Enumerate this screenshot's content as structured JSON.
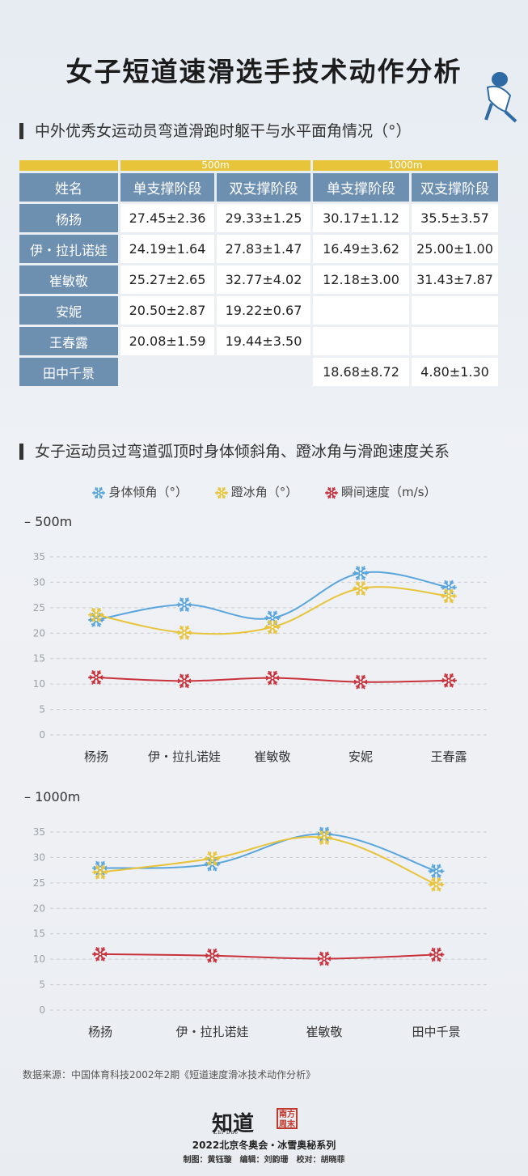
{
  "title": "女子短道速滑选手技术动作分析",
  "section1_title": "中外优秀女运动员弯道滑跑时躯干与水平面角情况（°）",
  "table": {
    "group_headers": [
      "500m",
      "1000m"
    ],
    "columns": [
      "姓名",
      "单支撑阶段",
      "双支撑阶段",
      "单支撑阶段",
      "双支撑阶段"
    ],
    "rows": [
      [
        "杨扬",
        "27.45±2.36",
        "29.33±1.25",
        "30.17±1.12",
        "35.5±3.57"
      ],
      [
        "伊・拉扎诺娃",
        "24.19±1.64",
        "27.83±1.47",
        "16.49±3.62",
        "25.00±1.00"
      ],
      [
        "崔敏敬",
        "25.27±2.65",
        "32.77±4.02",
        "12.18±3.00",
        "31.43±7.87"
      ],
      [
        "安妮",
        "20.50±2.87",
        "19.22±0.67",
        "",
        ""
      ],
      [
        "王春露",
        "20.08±1.59",
        "19.44±3.50",
        "",
        ""
      ],
      [
        "田中千景",
        "",
        "",
        "18.68±8.72",
        "4.80±1.30"
      ]
    ]
  },
  "section2_title": "女子运动员过弯道弧顶时身体倾斜角、蹬冰角与滑跑速度关系",
  "legend": [
    {
      "label": "身体倾角（°）",
      "color": "#5aa5dc"
    },
    {
      "label": "蹬冰角（°）",
      "color": "#e8c43a"
    },
    {
      "label": "瞬间速度（m/s）",
      "color": "#c8323c"
    }
  ],
  "chart_data": [
    {
      "type": "line",
      "title": "– 500m",
      "categories": [
        "杨扬",
        "伊・拉扎诺娃",
        "崔敏敬",
        "安妮",
        "王春露"
      ],
      "ylim": [
        0,
        35
      ],
      "yticks": [
        "0",
        "5",
        "10",
        "15",
        "20",
        "25",
        "30",
        "35"
      ],
      "grid": true,
      "series": [
        {
          "name": "身体倾角（°）",
          "color": "#5aa5dc",
          "values": [
            22.6,
            25.6,
            23.0,
            31.8,
            29.0
          ]
        },
        {
          "name": "蹬冰角（°）",
          "color": "#e8c43a",
          "values": [
            23.6,
            20.1,
            21.2,
            28.8,
            27.3
          ]
        },
        {
          "name": "瞬间速度（m/s）",
          "color": "#c8323c",
          "values": [
            11.3,
            10.6,
            11.2,
            10.4,
            10.7
          ]
        }
      ]
    },
    {
      "type": "line",
      "title": "– 1000m",
      "categories": [
        "杨扬",
        "伊・拉扎诺娃",
        "崔敏敬",
        "田中千景"
      ],
      "ylim": [
        0,
        35
      ],
      "yticks": [
        "0",
        "5",
        "10",
        "15",
        "20",
        "25",
        "30",
        "35"
      ],
      "grid": true,
      "series": [
        {
          "name": "身体倾角（°）",
          "color": "#5aa5dc",
          "values": [
            27.9,
            28.7,
            34.6,
            27.3
          ]
        },
        {
          "name": "蹬冰角（°）",
          "color": "#e8c43a",
          "values": [
            27.1,
            29.8,
            33.9,
            24.7
          ]
        },
        {
          "name": "瞬间速度（m/s）",
          "color": "#c8323c",
          "values": [
            11.0,
            10.7,
            10.1,
            10.9
          ]
        }
      ]
    }
  ],
  "footer": {
    "source": "数据来源：中国体育科技2002年2期《短道速度滑冰技术动作分析》",
    "logo1": "知道",
    "logo1_sub": "Zhi Dao",
    "logo2": "南方周末",
    "series_name": "2022北京冬奥会・冰雪奥秘系列",
    "credits": "制图：黄钰璇　编辑：刘韵珊　校对：胡晓菲"
  }
}
